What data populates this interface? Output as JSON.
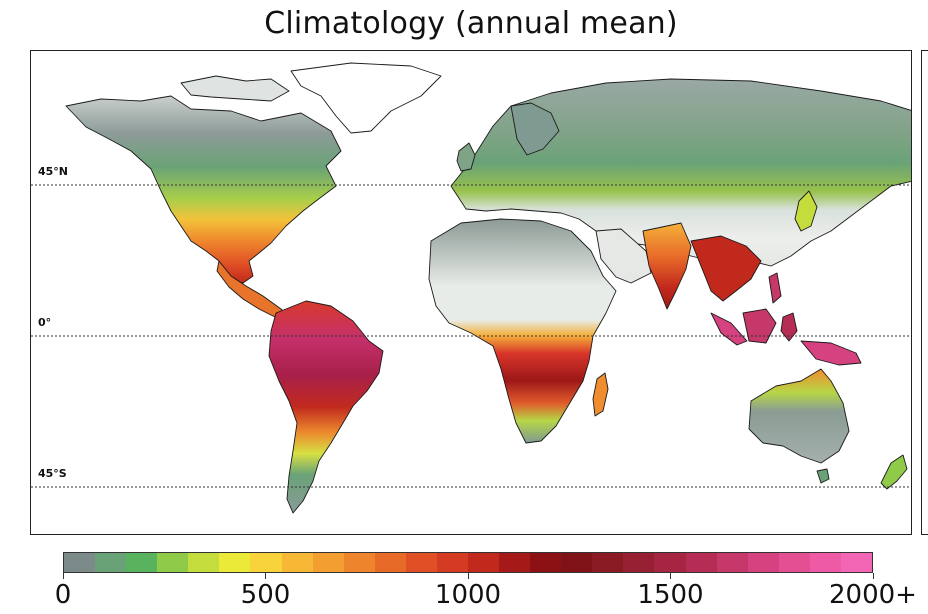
{
  "figure": {
    "title": "Climatology (annual mean)"
  },
  "map": {
    "latitude_labels": [
      "45°N",
      "0°",
      "45°S"
    ],
    "graticule": "dotted parallels at 45°N, 0°, 45°S",
    "ocean_color": "#ffffff",
    "border_color": "#1a1a1a"
  },
  "colorbar": {
    "min": 0,
    "max": 2000,
    "tick_labels": [
      "0",
      "500",
      "1000",
      "1500",
      "2000+"
    ],
    "colors": [
      "#7c8b8a",
      "#6aa277",
      "#58b25e",
      "#8fca48",
      "#c4dd3c",
      "#ecea39",
      "#f8d43a",
      "#f7b835",
      "#f39e31",
      "#ee852d",
      "#e86a29",
      "#e04f25",
      "#d43b22",
      "#c1291d",
      "#a51a18",
      "#8c1115",
      "#7f1216",
      "#8a1a24",
      "#961f32",
      "#a52542",
      "#b52d55",
      "#c6376a",
      "#d6427f",
      "#e44e93",
      "#ee5aa6",
      "#f366b5"
    ]
  }
}
